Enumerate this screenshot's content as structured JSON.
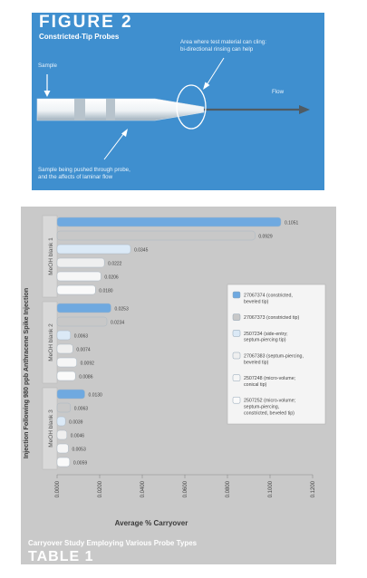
{
  "figure": {
    "title": "FIGURE 2",
    "subtitle": "Constricted-Tip Probes",
    "annotations": {
      "sample": "Sample",
      "cling_line1": "Area where test material can cling:",
      "cling_line2": "bi-directional rinsing can help",
      "flow": "Flow",
      "pushed_line1": "Sample being pushed through probe,",
      "pushed_line2": "and the affects of laminar flow"
    }
  },
  "table": {
    "caption": "Carryover Study Employing Various Probe Types",
    "label": "TABLE 1"
  },
  "chart_data": {
    "type": "bar",
    "orientation": "horizontal",
    "title": "",
    "xlabel": "Average % Carryover",
    "ylabel": "Injection Following 980 ppb Anthracene Spike Injection",
    "xlim": [
      0,
      0.12
    ],
    "xticks": [
      "0.0000",
      "0.0200",
      "0.0400",
      "0.0600",
      "0.0800",
      "0.1000",
      "0.1200"
    ],
    "groups": [
      "MeOH  blank 1",
      "MeOH  blank 2",
      "MeOH  blank 3"
    ],
    "grid": false,
    "legend_position": "right",
    "series": [
      {
        "name": "27067374 (constricted, beveled tip)",
        "color": "#6fa9e0",
        "values": [
          0.1051,
          0.0253,
          0.013
        ],
        "labels": [
          "0.1051",
          "0.0253",
          "0.0130"
        ]
      },
      {
        "name": "27067373 (constricted tip)",
        "color": "#c8c8c8",
        "values": [
          0.0929,
          0.0234,
          0.0063
        ],
        "labels": [
          "0.0929",
          "0.0234",
          "0.0063"
        ]
      },
      {
        "name": "2507234 (side-entry; septum-piercing tip)",
        "color": "#dbe9f6",
        "values": [
          0.0345,
          0.0063,
          0.0039
        ],
        "labels": [
          "0.0345",
          "0.0063",
          "0.0039"
        ]
      },
      {
        "name": "27067383 (septum-piercing, beveled tip)",
        "color": "#efefef",
        "values": [
          0.0222,
          0.0074,
          0.0046
        ],
        "labels": [
          "0.0222",
          "0.0074",
          "0.0046"
        ]
      },
      {
        "name": "2507248 (micro-volume; conical tip)",
        "color": "#f6f6f6",
        "values": [
          0.0206,
          0.0092,
          0.0053
        ],
        "labels": [
          "0.0206",
          "0.0092",
          "0.0053"
        ]
      },
      {
        "name": "2507252 (micro-volume; septum-piercing, constricted, beveled tip)",
        "color": "#fafafa",
        "values": [
          0.018,
          0.0086,
          0.0059
        ],
        "labels": [
          "0.0180",
          "0.0086",
          "0.0059"
        ]
      }
    ]
  }
}
